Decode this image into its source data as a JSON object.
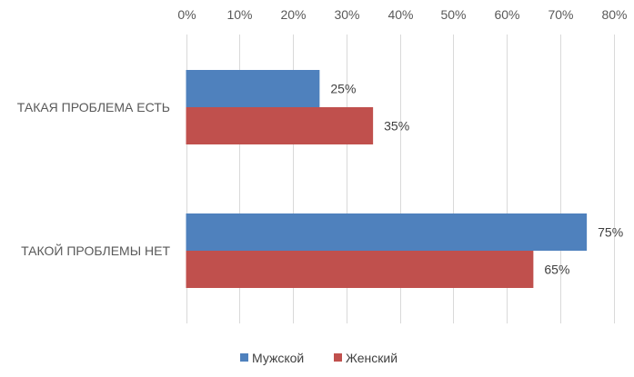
{
  "chart_data": {
    "type": "bar",
    "orientation": "horizontal",
    "categories": [
      "ТАКАЯ ПРОБЛЕМА ЕСТЬ",
      "ТАКОЙ ПРОБЛЕМЫ НЕТ"
    ],
    "series": [
      {
        "name": "Мужской",
        "values": [
          25,
          75
        ],
        "color": "#4f81bd"
      },
      {
        "name": "Женский",
        "values": [
          35,
          65
        ],
        "color": "#c0504d"
      }
    ],
    "data_labels": [
      [
        "25%",
        "75%"
      ],
      [
        "35%",
        "65%"
      ]
    ],
    "xlim": [
      0,
      80
    ],
    "x_ticks": [
      "0%",
      "10%",
      "20%",
      "30%",
      "40%",
      "50%",
      "60%",
      "70%",
      "80%"
    ],
    "x_axis_position": "top",
    "gridlines": true,
    "gridline_color": "#d9d9d9",
    "legend_position": "bottom",
    "title": "",
    "xlabel": "",
    "ylabel": ""
  }
}
